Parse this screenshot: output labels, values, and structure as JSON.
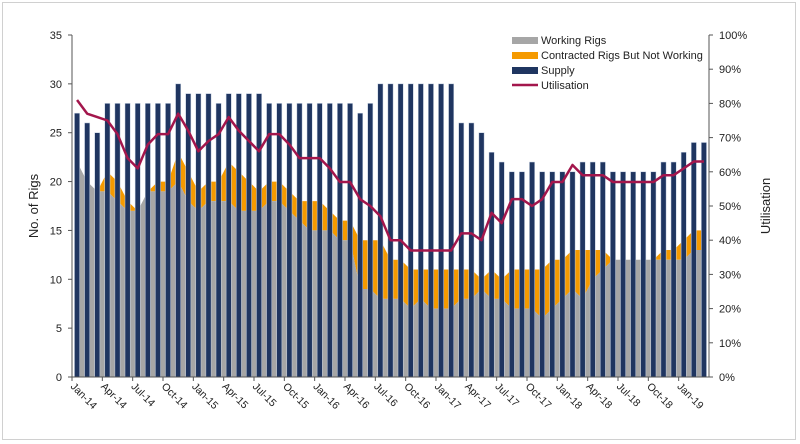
{
  "chart_data": {
    "type": "bar",
    "title": "",
    "ylabel": "No. of Rigs",
    "y2label": "Utilisation",
    "ylim": [
      0,
      35
    ],
    "yticks": [
      "0",
      "5",
      "10",
      "15",
      "20",
      "25",
      "30",
      "35"
    ],
    "y2lim": [
      0,
      100
    ],
    "y2ticks": [
      "0%",
      "10%",
      "20%",
      "30%",
      "40%",
      "50%",
      "60%",
      "70%",
      "80%",
      "90%",
      "100%"
    ],
    "legend_position": "top-right",
    "grid": false,
    "categories": [
      "Jan-14",
      "Feb-14",
      "Mar-14",
      "Apr-14",
      "May-14",
      "Jun-14",
      "Jul-14",
      "Aug-14",
      "Sep-14",
      "Oct-14",
      "Nov-14",
      "Dec-14",
      "Jan-15",
      "Feb-15",
      "Mar-15",
      "Apr-15",
      "May-15",
      "Jun-15",
      "Jul-15",
      "Aug-15",
      "Sep-15",
      "Oct-15",
      "Nov-15",
      "Dec-15",
      "Jan-16",
      "Feb-16",
      "Mar-16",
      "Apr-16",
      "May-16",
      "Jun-16",
      "Jul-16",
      "Aug-16",
      "Sep-16",
      "Oct-16",
      "Nov-16",
      "Dec-16",
      "Jan-17",
      "Feb-17",
      "Mar-17",
      "Apr-17",
      "May-17",
      "Jun-17",
      "Jul-17",
      "Aug-17",
      "Sep-17",
      "Oct-17",
      "Nov-17",
      "Dec-17",
      "Jan-18",
      "Feb-18",
      "Mar-18",
      "Apr-18",
      "May-18",
      "Jun-18",
      "Jul-18",
      "Aug-18",
      "Sep-18",
      "Oct-18",
      "Nov-18",
      "Dec-18",
      "Jan-19",
      "Feb-19",
      "Mar-19"
    ],
    "xtick_labels": [
      "Jan-14",
      "Apr-14",
      "Jul-14",
      "Oct-14",
      "Jan-15",
      "Apr-15",
      "Jul-15",
      "Oct-15",
      "Jan-16",
      "Apr-16",
      "Jul-16",
      "Oct-16",
      "Jan-17",
      "Apr-17",
      "Jul-17",
      "Oct-17",
      "Jan-18",
      "Apr-18",
      "Jul-18",
      "Oct-18",
      "Jan-19"
    ],
    "series": [
      {
        "name": "Working Rigs",
        "type": "area",
        "axis": "left",
        "color": "#a6a6a6",
        "values": [
          22,
          20,
          19,
          19,
          18,
          17,
          17,
          19,
          19,
          19,
          20,
          18,
          17,
          18,
          18,
          18,
          17,
          17,
          17,
          18,
          18,
          17,
          16,
          15,
          15,
          15,
          14,
          14,
          9,
          9,
          8,
          8,
          8,
          7,
          8,
          7,
          7,
          7,
          8,
          8,
          9,
          8,
          8,
          7,
          7,
          7,
          6,
          7,
          8,
          9,
          8,
          10,
          11,
          12,
          12,
          12,
          12,
          12,
          12,
          12,
          12,
          13,
          13
        ]
      },
      {
        "name": "Contracted Rigs But Not Working",
        "type": "area",
        "stacked": true,
        "axis": "left",
        "color": "#f59a00",
        "values": [
          0,
          0,
          0,
          2,
          2,
          1,
          0,
          0,
          1,
          1,
          3,
          3,
          2,
          2,
          2,
          4,
          4,
          3,
          2,
          2,
          2,
          2,
          2,
          3,
          3,
          2,
          2,
          2,
          5,
          5,
          6,
          4,
          4,
          4,
          3,
          4,
          4,
          4,
          3,
          3,
          1,
          3,
          2,
          4,
          4,
          4,
          5,
          5,
          4,
          4,
          5,
          3,
          2,
          0,
          0,
          0,
          0,
          0,
          1,
          1,
          2,
          2,
          2
        ]
      },
      {
        "name": "Supply",
        "type": "bar",
        "axis": "left",
        "color": "#1f3560",
        "values": [
          27,
          26,
          25,
          28,
          28,
          28,
          28,
          28,
          28,
          28,
          30,
          29,
          29,
          29,
          28,
          29,
          29,
          29,
          29,
          28,
          28,
          28,
          28,
          28,
          28,
          28,
          28,
          28,
          27,
          28,
          30,
          30,
          30,
          30,
          30,
          30,
          30,
          30,
          26,
          26,
          25,
          23,
          22,
          21,
          21,
          22,
          21,
          21,
          21,
          21,
          22,
          22,
          22,
          21,
          21,
          21,
          21,
          21,
          22,
          22,
          23,
          24,
          24
        ]
      },
      {
        "name": "Utilisation",
        "type": "line",
        "axis": "right",
        "unit": "%",
        "color": "#a3164c",
        "values": [
          81,
          77,
          76,
          75,
          71,
          64,
          61,
          68,
          71,
          71,
          77,
          72,
          66,
          69,
          71,
          76,
          72,
          69,
          66,
          71,
          71,
          68,
          64,
          64,
          64,
          61,
          57,
          57,
          52,
          50,
          47,
          40,
          40,
          37,
          37,
          37,
          37,
          37,
          42,
          42,
          40,
          48,
          45,
          52,
          52,
          50,
          52,
          57,
          57,
          62,
          59,
          59,
          59,
          57,
          57,
          57,
          57,
          57,
          59,
          59,
          61,
          63,
          63
        ]
      }
    ]
  }
}
